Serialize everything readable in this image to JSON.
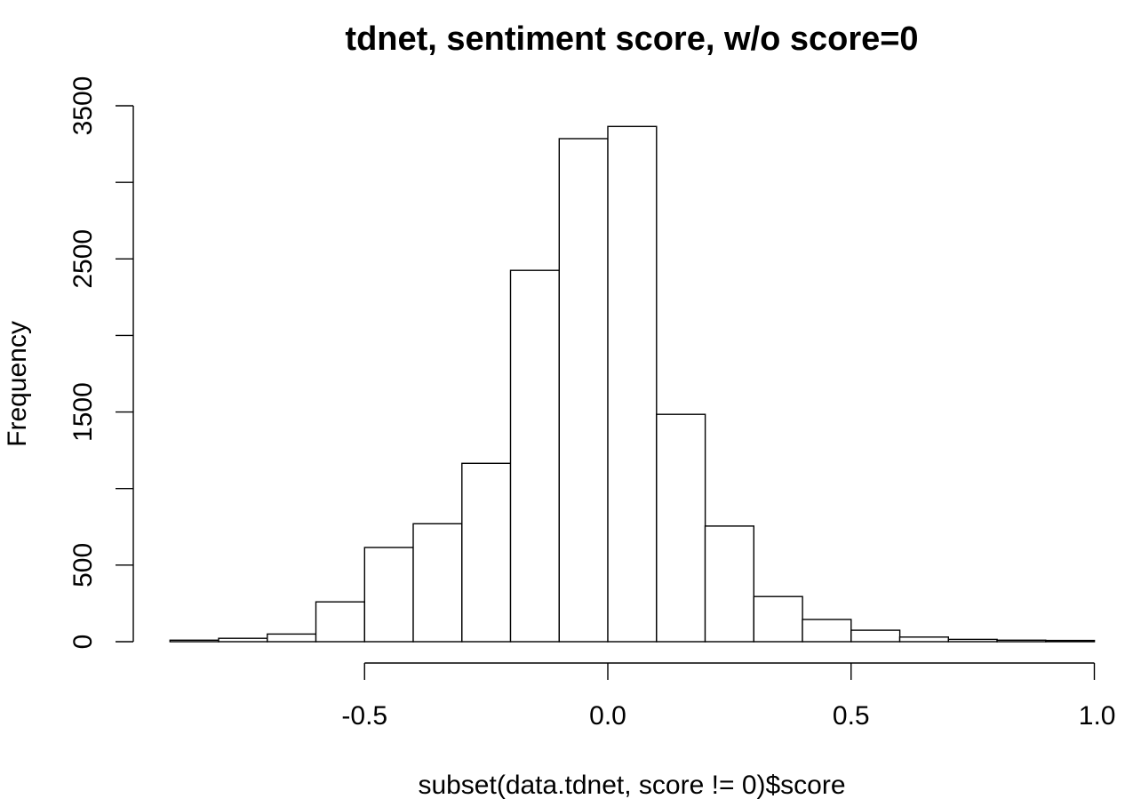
{
  "chart_data": {
    "type": "bar",
    "title": "tdnet, sentiment score, w/o score=0",
    "xlabel": "subset(data.tdnet, score != 0)$score",
    "ylabel": "Frequency",
    "bin_edges": [
      -0.9,
      -0.8,
      -0.7,
      -0.6,
      -0.5,
      -0.4,
      -0.3,
      -0.2,
      -0.1,
      0.0,
      0.1,
      0.2,
      0.3,
      0.4,
      0.5,
      0.6,
      0.7,
      0.8,
      0.9,
      1.0
    ],
    "values": [
      10,
      22,
      50,
      260,
      615,
      770,
      1165,
      2425,
      3285,
      3365,
      1485,
      755,
      295,
      145,
      75,
      30,
      15,
      10,
      8
    ],
    "xlim": [
      -0.9,
      1.0
    ],
    "ylim": [
      0,
      3500
    ],
    "x_ticks": [
      "-0.5",
      "0.0",
      "0.5",
      "1.0"
    ],
    "y_ticks": [
      "0",
      "500",
      "1500",
      "2500",
      "3500"
    ],
    "grid": false,
    "colors": {
      "bar_fill": "#ffffff",
      "bar_stroke": "#000000"
    }
  }
}
